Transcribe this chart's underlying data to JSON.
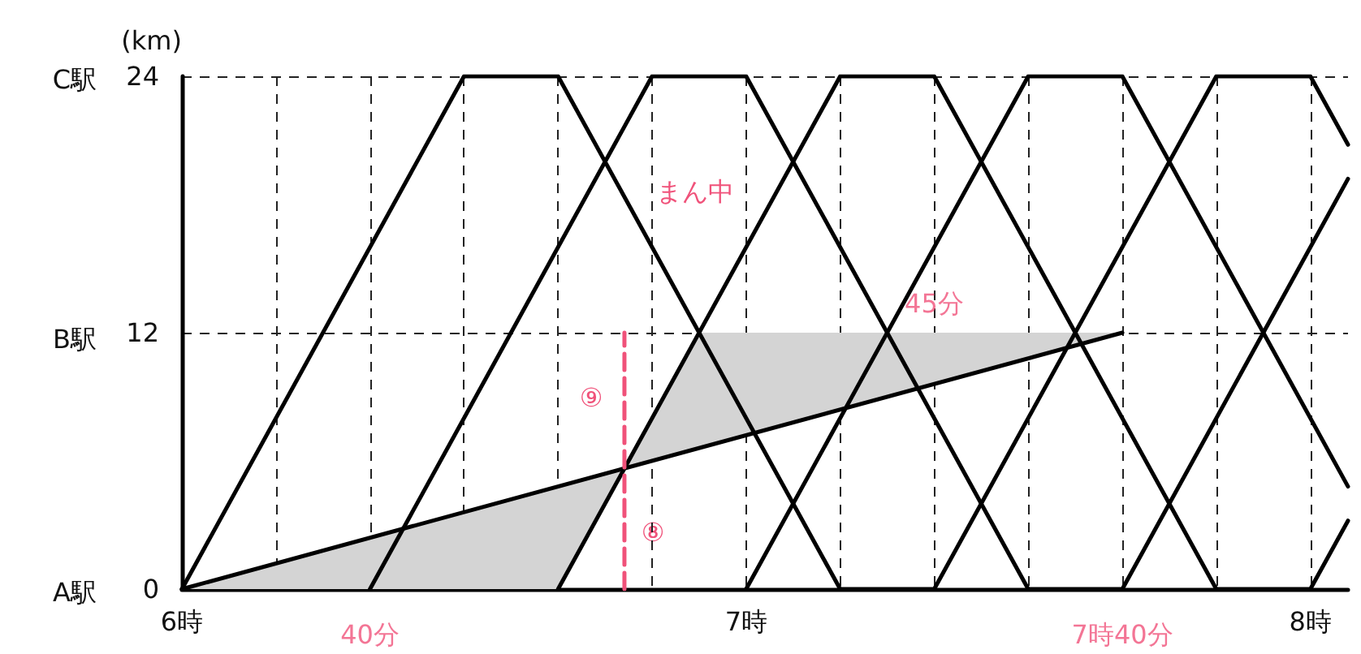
{
  "chart_data": {
    "type": "line",
    "ylabel": "(km)",
    "xlim": [
      6,
      8.0667
    ],
    "ylim": [
      0,
      24
    ],
    "xticks": [
      {
        "value": 6,
        "label": "6時"
      },
      {
        "value": 6.1667,
        "label": null
      },
      {
        "value": 6.3333,
        "label": null
      },
      {
        "value": 6.5,
        "label": null
      },
      {
        "value": 6.6667,
        "label": null
      },
      {
        "value": 6.8333,
        "label": null
      },
      {
        "value": 7,
        "label": "7時"
      },
      {
        "value": 7.1667,
        "label": null
      },
      {
        "value": 7.3333,
        "label": null
      },
      {
        "value": 7.5,
        "label": null
      },
      {
        "value": 7.6667,
        "label": null
      },
      {
        "value": 7.8333,
        "label": null
      },
      {
        "value": 8,
        "label": "8時"
      }
    ],
    "yticks": [
      0,
      12,
      24
    ],
    "grid": true,
    "marker": "none",
    "series": [
      {
        "type": "area",
        "color": "#d4d4d4",
        "x": [
          6,
          6.6667,
          6.7843
        ],
        "values": [
          0,
          0,
          5.65
        ]
      },
      {
        "type": "area",
        "color": "#d4d4d4",
        "x": [
          6.7843,
          6.9167,
          7.6667
        ],
        "values": [
          5.65,
          12,
          12
        ]
      },
      {
        "color": "#000000",
        "x": [
          6,
          6.5,
          6.6667,
          7.1667,
          7.3333,
          7.8333,
          8,
          8.0667
        ],
        "values": [
          0,
          24,
          24,
          0,
          0,
          24,
          24,
          20.8
        ]
      },
      {
        "color": "#000000",
        "x": [
          6.3333,
          6.8333,
          7,
          7.5,
          7.6667,
          8.0667
        ],
        "values": [
          0,
          24,
          24,
          0,
          0,
          19.2
        ]
      },
      {
        "color": "#000000",
        "x": [
          6.6667,
          7.1667,
          7.3333,
          7.8333,
          8,
          8.0667
        ],
        "values": [
          0,
          24,
          24,
          0,
          0,
          3.2
        ]
      },
      {
        "color": "#000000",
        "x": [
          7,
          7.5,
          7.6667,
          8.0667
        ],
        "values": [
          0,
          24,
          24,
          4.8
        ]
      },
      {
        "color": "#000000",
        "x": [
          6,
          7.6667
        ],
        "values": [
          0,
          12
        ]
      },
      {
        "color": "#f0527a",
        "line_style": "dashed",
        "x": [
          6.7843,
          6.7843
        ],
        "values": [
          0,
          12
        ]
      }
    ],
    "annotations": [
      "まん中",
      "⑨",
      "⑧",
      "A駅",
      "B駅",
      "C駅",
      {
        "text": "45分",
        "x": 7.3333,
        "y": 12
      },
      {
        "text": "40分",
        "x": 6.3333,
        "y": 0
      },
      {
        "text": "7時40分",
        "x": 7.6667,
        "y": 0
      }
    ]
  }
}
